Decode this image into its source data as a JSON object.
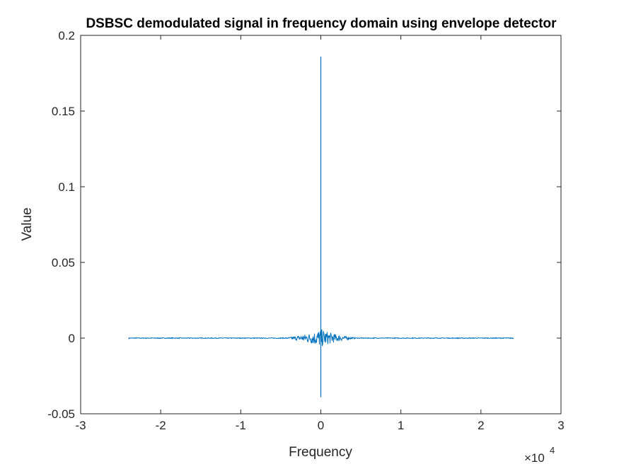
{
  "chart_data": {
    "type": "line",
    "title": "DSBSC demodulated signal in frequency domain using envelope detector",
    "xlabel": "Frequency",
    "ylabel": "Value",
    "xlim": [
      -3,
      3
    ],
    "ylim": [
      -0.05,
      0.2
    ],
    "x_multiplier": "×10",
    "x_multiplier_exponent": "4",
    "x_ticks": [
      "-3",
      "-2",
      "-1",
      "0",
      "1",
      "2",
      "3"
    ],
    "y_ticks": [
      "-0.05",
      "0",
      "0.05",
      "0.1",
      "0.15",
      "0.2"
    ],
    "grid": false,
    "series_color": "#0072BD",
    "series": [
      {
        "x_range": [
          -2.4,
          2.4
        ],
        "peak": {
          "x": 0,
          "max": 0.186,
          "min": -0.039
        },
        "noise_band": {
          "center": 0,
          "half_width": 0.6,
          "max_amplitude": 0.006
        }
      }
    ]
  }
}
